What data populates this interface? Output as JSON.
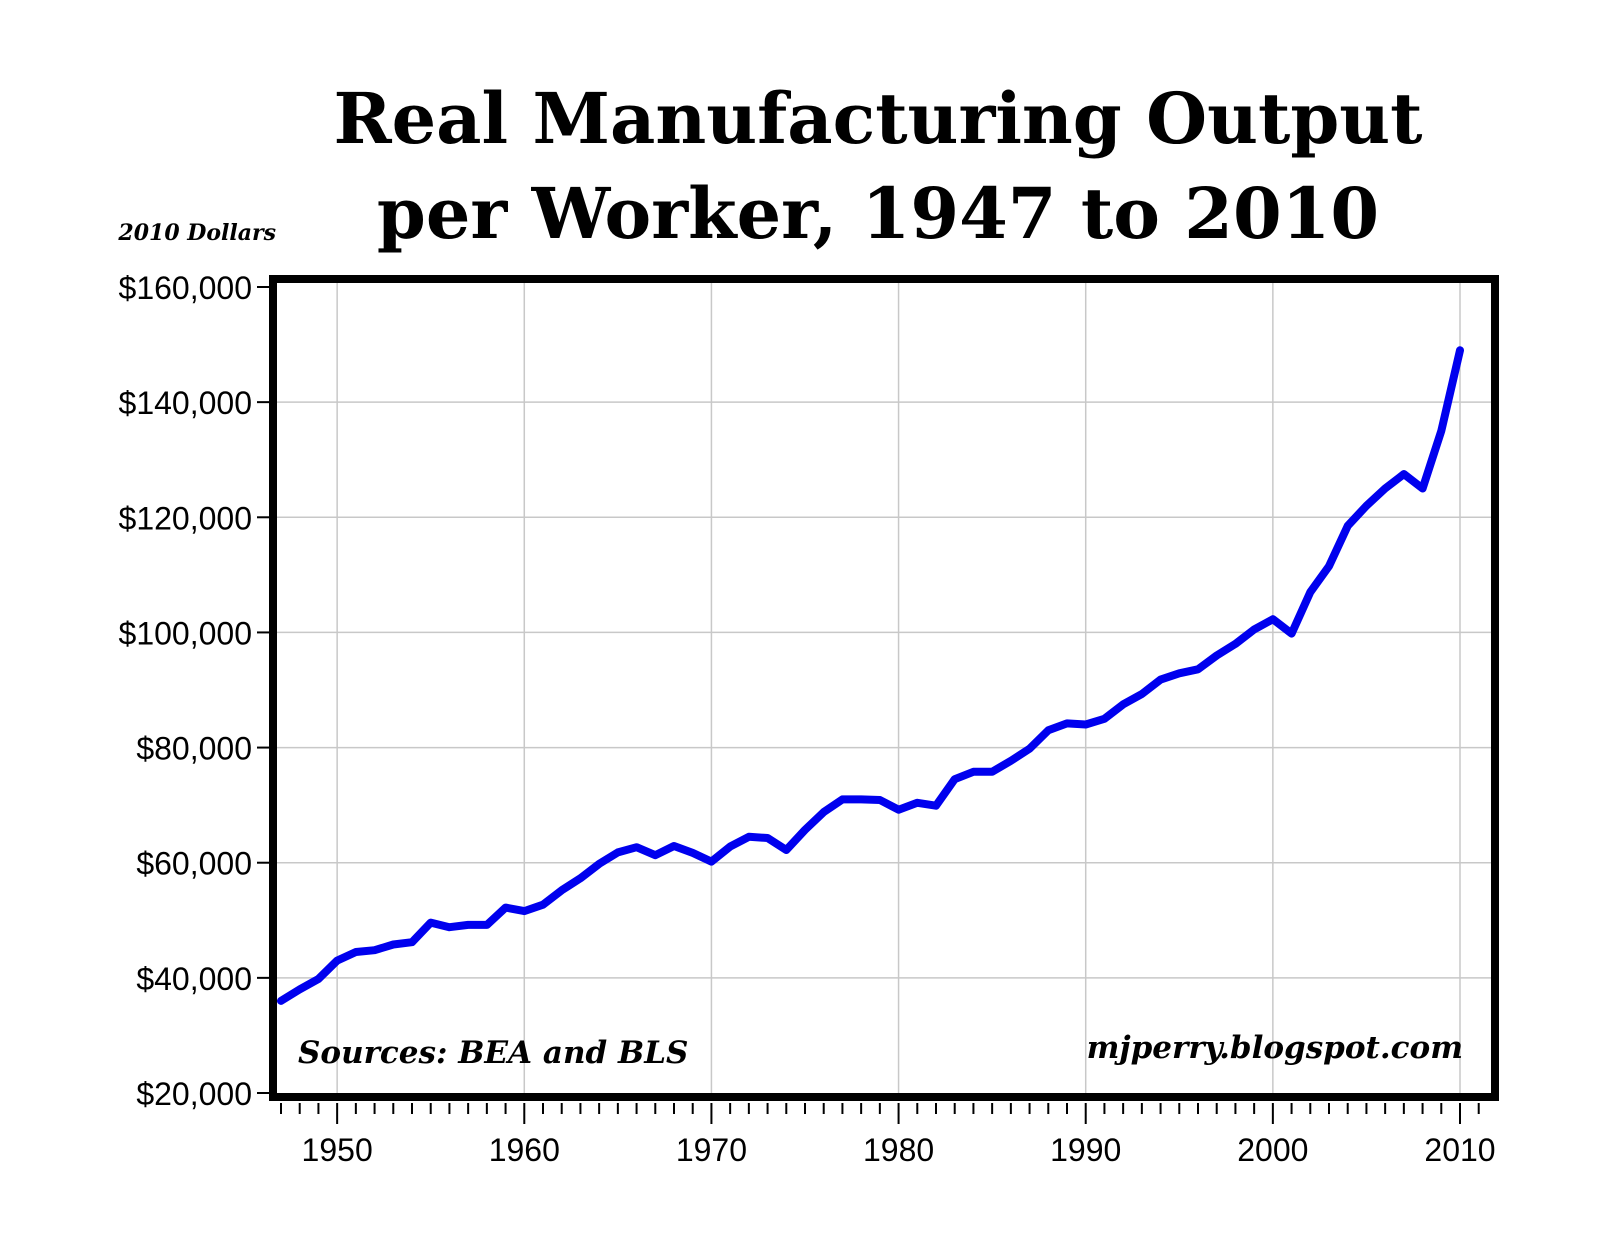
{
  "chart_data": {
    "type": "line",
    "title_line1": "Real Manufacturing Output",
    "title_line2": "per Worker, 1947 to 2010",
    "ylabel": "2010 Dollars",
    "xlabel": "",
    "ylim": [
      20000,
      160000
    ],
    "xlim": [
      1947,
      2010
    ],
    "y_ticks": [
      20000,
      40000,
      60000,
      80000,
      100000,
      120000,
      140000,
      160000
    ],
    "y_tick_labels": [
      "$20,000",
      "$40,000",
      "$60,000",
      "$80,000",
      "$100,000",
      "$120,000",
      "$140,000",
      "$160,000"
    ],
    "x_ticks": [
      1950,
      1960,
      1970,
      1980,
      1990,
      2000,
      2010
    ],
    "x_tick_labels": [
      "1950",
      "1960",
      "1970",
      "1980",
      "1990",
      "2000",
      "2010"
    ],
    "grid": true,
    "source_note": "Sources: BEA and BLS",
    "credit": "mjperry.blogspot.com",
    "line_color": "#0000ee",
    "series": [
      {
        "name": "Real manufacturing output per worker",
        "x": [
          1947,
          1948,
          1949,
          1950,
          1951,
          1952,
          1953,
          1954,
          1955,
          1956,
          1957,
          1958,
          1959,
          1960,
          1961,
          1962,
          1963,
          1964,
          1965,
          1966,
          1967,
          1968,
          1969,
          1970,
          1971,
          1972,
          1973,
          1974,
          1975,
          1976,
          1977,
          1978,
          1979,
          1980,
          1981,
          1982,
          1983,
          1984,
          1985,
          1986,
          1987,
          1988,
          1989,
          1990,
          1991,
          1992,
          1993,
          1994,
          1995,
          1996,
          1997,
          1998,
          1999,
          2000,
          2001,
          2002,
          2003,
          2004,
          2005,
          2006,
          2007,
          2008,
          2009,
          2010
        ],
        "values": [
          36000,
          38000,
          39800,
          43000,
          44500,
          44800,
          45800,
          46200,
          49600,
          48800,
          49200,
          49200,
          52200,
          51600,
          52700,
          55200,
          57300,
          59800,
          61800,
          62700,
          61300,
          62900,
          61700,
          60200,
          62800,
          64500,
          64300,
          62200,
          65700,
          68800,
          71000,
          71000,
          70900,
          69200,
          70400,
          69900,
          74500,
          75800,
          75800,
          77700,
          79800,
          83000,
          84200,
          84000,
          85000,
          87500,
          89300,
          91800,
          92900,
          93600,
          96000,
          98000,
          100500,
          102300,
          99800,
          107000,
          111500,
          118500,
          122000,
          125000,
          127500,
          125000,
          135000,
          149000
        ]
      }
    ]
  }
}
